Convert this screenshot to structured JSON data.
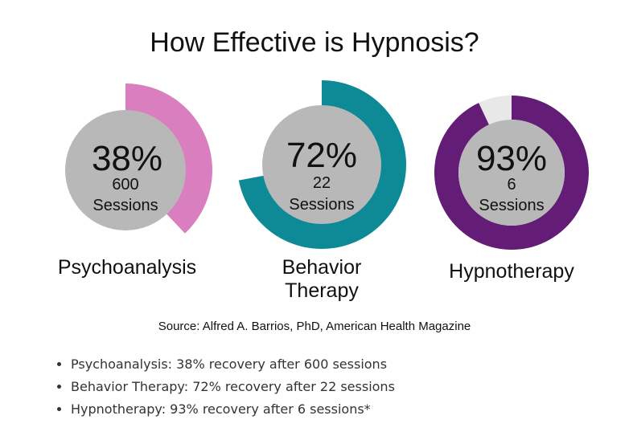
{
  "chart_data": {
    "type": "donut",
    "title": "How Effective is Hypnosis?",
    "series": [
      {
        "name": "Psychoanalysis",
        "percent_label": "38%",
        "value": 38,
        "sessions": "600",
        "sessions_label": "Sessions",
        "color": "#d97fbf"
      },
      {
        "name": "Behavior Therapy",
        "name_lines": [
          "Behavior",
          "Therapy"
        ],
        "percent_label": "72%",
        "value": 72,
        "sessions": "22",
        "sessions_label": "Sessions",
        "color": "#0e8a96"
      },
      {
        "name": "Hypnotherapy",
        "percent_label": "93%",
        "value": 93,
        "sessions": "6",
        "sessions_label": "Sessions",
        "color": "#631d76"
      }
    ],
    "remainder_color": "#e8e8e8",
    "center_color": "#b8b8b8",
    "source": "Source: Alfred A. Barrios, PhD, American Health Magazine"
  },
  "bullets": [
    "Psychoanalysis: 38% recovery after 600 sessions",
    "Behavior Therapy: 72% recovery after 22 sessions",
    "Hypnotherapy: 93% recovery after 6 sessions*"
  ]
}
